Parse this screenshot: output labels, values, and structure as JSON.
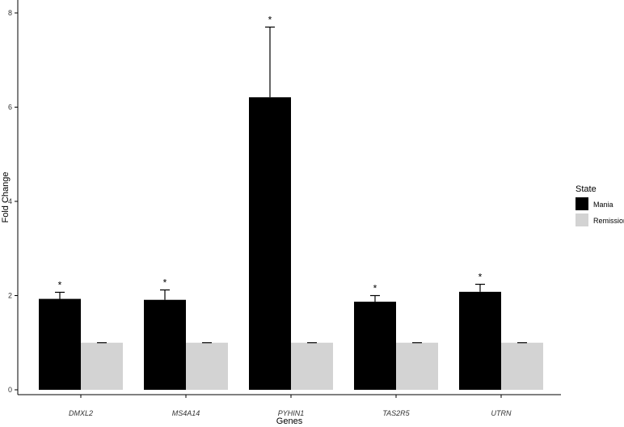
{
  "chart_data": {
    "type": "bar",
    "xlabel": "Genes",
    "ylabel": "Fold Change",
    "categories": [
      "DMXL2",
      "MS4A14",
      "PYHIN1",
      "TAS2R5",
      "UTRN"
    ],
    "series": [
      {
        "name": "Mania",
        "color": "#000000",
        "values": [
          1.93,
          1.91,
          6.21,
          1.87,
          2.08
        ],
        "error_upper": [
          2.07,
          2.12,
          7.7,
          2.0,
          2.24
        ]
      },
      {
        "name": "Remission",
        "color": "#d3d3d3",
        "values": [
          1.0,
          1.0,
          1.0,
          1.0,
          1.0
        ],
        "error_upper": [
          1.0,
          1.0,
          1.0,
          1.0,
          1.0
        ]
      }
    ],
    "significance": [
      "*",
      "*",
      "*",
      "*",
      "*"
    ],
    "yticks": [
      "0",
      "2",
      "4",
      "6",
      "8"
    ],
    "ylim": [
      0,
      8.25
    ],
    "legend": {
      "title": "State",
      "position": "right"
    },
    "grid": false
  }
}
